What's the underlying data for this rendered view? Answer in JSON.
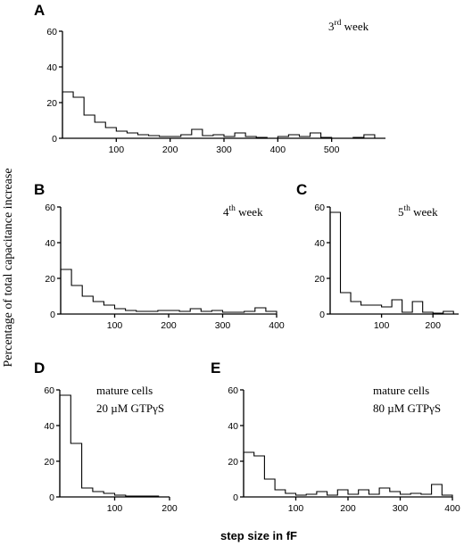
{
  "figure": {
    "ylabel": "Percentage of total capacitance increase",
    "xlabel": "step size in fF"
  },
  "chart_data": [
    {
      "type": "histogram",
      "panel": "A",
      "annotation": [
        "3rd week"
      ],
      "annotation_sup": "rd",
      "annotation_base": "3",
      "annotation_tail": " week",
      "xlim": [
        0,
        600
      ],
      "ylim": [
        0,
        60
      ],
      "xticks": [
        100,
        200,
        300,
        400,
        500
      ],
      "yticks": [
        0,
        20,
        40,
        60
      ],
      "bin_width": 20,
      "values": [
        26,
        23,
        13,
        9,
        6,
        4,
        3,
        2,
        1.5,
        1,
        1,
        2,
        5,
        1.5,
        2,
        1,
        3,
        1,
        0.5,
        0,
        1,
        2,
        1,
        3,
        0.5,
        0,
        0,
        0.5,
        2,
        0
      ]
    },
    {
      "type": "histogram",
      "panel": "B",
      "annotation_base": "4",
      "annotation_sup": "th",
      "annotation_tail": " week",
      "xlim": [
        0,
        400
      ],
      "ylim": [
        0,
        60
      ],
      "xticks": [
        100,
        200,
        300,
        400
      ],
      "yticks": [
        0,
        20,
        40,
        60
      ],
      "bin_width": 20,
      "values": [
        25,
        16,
        10,
        7,
        5,
        3,
        2,
        1.5,
        1.5,
        2,
        2,
        1.5,
        3,
        1.5,
        2,
        1,
        1,
        1.5,
        3.5,
        1.5
      ]
    },
    {
      "type": "histogram",
      "panel": "C",
      "annotation_base": "5",
      "annotation_sup": "th",
      "annotation_tail": " week",
      "xlim": [
        0,
        250
      ],
      "ylim": [
        0,
        60
      ],
      "xticks": [
        100,
        200
      ],
      "yticks": [
        0,
        20,
        40,
        60
      ],
      "bin_width": 20,
      "values": [
        57,
        12,
        7,
        5,
        5,
        4,
        8,
        1,
        7,
        1,
        0.5,
        1.5
      ]
    },
    {
      "type": "histogram",
      "panel": "D",
      "annotation": [
        "mature cells",
        "20 µM GTPγS"
      ],
      "xlim": [
        0,
        200
      ],
      "ylim": [
        0,
        60
      ],
      "xticks": [
        100,
        200
      ],
      "yticks": [
        0,
        20,
        40,
        60
      ],
      "bin_width": 20,
      "values": [
        57,
        30,
        5,
        3,
        2,
        1,
        0.5,
        0.5,
        0.5,
        0
      ]
    },
    {
      "type": "histogram",
      "panel": "E",
      "annotation": [
        "mature cells",
        "80 µM GTPγS"
      ],
      "xlim": [
        0,
        400
      ],
      "ylim": [
        0,
        60
      ],
      "xticks": [
        100,
        200,
        300,
        400
      ],
      "yticks": [
        0,
        20,
        40,
        60
      ],
      "bin_width": 20,
      "values": [
        25,
        23,
        10,
        4,
        2,
        1,
        1.5,
        3,
        1,
        4,
        1.5,
        4,
        1.5,
        5,
        3,
        1.5,
        2,
        1.5,
        7,
        1
      ]
    }
  ]
}
